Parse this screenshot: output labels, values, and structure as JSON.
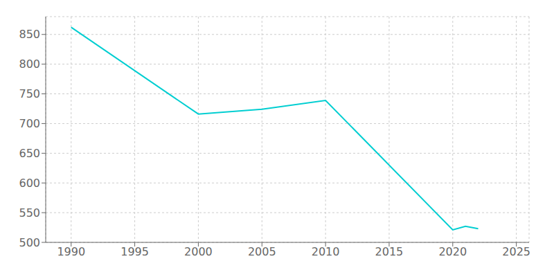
{
  "chart_data": {
    "type": "line",
    "x": [
      1990,
      2000,
      2005,
      2010,
      2020,
      2021,
      2022
    ],
    "values": [
      862,
      716,
      724,
      739,
      521,
      527,
      523
    ],
    "color": "#00CED1",
    "xlim": [
      1988,
      2026
    ],
    "ylim": [
      500,
      880
    ],
    "xticks": [
      1990,
      1995,
      2000,
      2005,
      2010,
      2015,
      2020,
      2025
    ],
    "yticks": [
      500,
      550,
      600,
      650,
      700,
      750,
      800,
      850
    ],
    "grid": true
  }
}
